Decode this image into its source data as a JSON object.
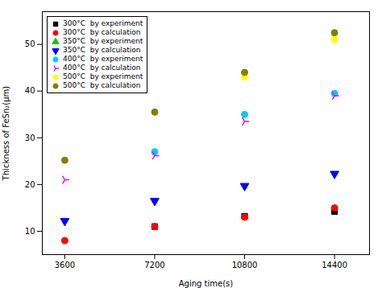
{
  "chart_data": {
    "type": "scatter",
    "xlabel": "Aging time(s)",
    "ylabel": "Thickness of FeSn₂(μm)",
    "xlim": [
      2700,
      15800
    ],
    "ylim": [
      5,
      57
    ],
    "xticks": [
      3600,
      7200,
      10800,
      14400
    ],
    "yticks": [
      10,
      20,
      30,
      40,
      50
    ],
    "legend": "upper-left",
    "series": [
      {
        "name": "300°C  by experiment",
        "color": "#000000",
        "marker": "square",
        "x": [
          7200,
          10800,
          14400
        ],
        "values": [
          11.0,
          13.2,
          14.2
        ]
      },
      {
        "name": "300°C  by calculation",
        "color": "#ff0000",
        "marker": "circle",
        "x": [
          3600,
          7200,
          10800,
          14400
        ],
        "values": [
          8.0,
          11.0,
          13.0,
          15.0
        ]
      },
      {
        "name": "350°C  by experiment",
        "color": "#00cc00",
        "marker": "triangle-up",
        "x": [],
        "values": []
      },
      {
        "name": "350°C  by calculation",
        "color": "#0000ff",
        "marker": "triangle-down",
        "x": [
          3600,
          7200,
          10800,
          14400
        ],
        "values": [
          12.2,
          16.5,
          19.7,
          22.3
        ]
      },
      {
        "name": "400°C  by experiment",
        "color": "#00ccff",
        "marker": "circle",
        "x": [
          7200,
          10800,
          14400
        ],
        "values": [
          27.0,
          35.0,
          39.5
        ]
      },
      {
        "name": "400°C  by calculation",
        "color": "#ff00ff",
        "marker": "tri-right",
        "x": [
          3600,
          7200,
          10800,
          14400
        ],
        "values": [
          21.0,
          26.2,
          33.5,
          39.0
        ]
      },
      {
        "name": "500°C  by experiment",
        "color": "#ffff00",
        "marker": "circle",
        "x": [
          10800,
          14400
        ],
        "values": [
          43.0,
          51.0
        ]
      },
      {
        "name": "500°C  by calculation",
        "color": "#808000",
        "marker": "circle",
        "x": [
          3600,
          7200,
          10800,
          14400
        ],
        "values": [
          25.2,
          35.5,
          44.0,
          52.5
        ]
      }
    ]
  }
}
